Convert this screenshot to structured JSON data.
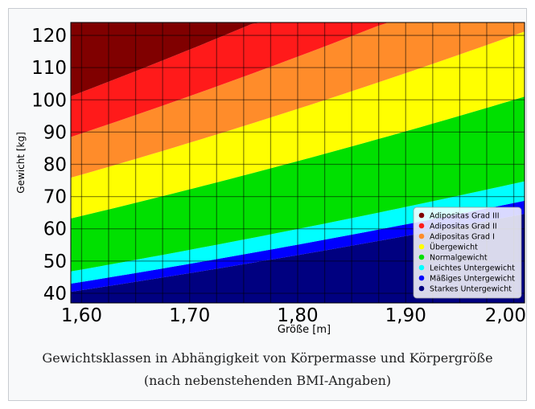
{
  "caption": {
    "line1": "Gewichtsklassen in Abhängigkeit von Körpermasse und Körpergröße",
    "line2": "(nach nebenstehenden BMI-Angaben)"
  },
  "chart_data": {
    "type": "area",
    "title": "",
    "xlabel": "Größe [m]",
    "ylabel": "Gewicht [kg]",
    "xlim": [
      1.59,
      2.01
    ],
    "ylim": [
      37,
      124
    ],
    "x_ticks": [
      "1,60",
      "1,70",
      "1,80",
      "1,90",
      "2,00"
    ],
    "x_tick_values": [
      1.6,
      1.7,
      1.8,
      1.9,
      2.0
    ],
    "y_ticks": [
      "40",
      "50",
      "60",
      "70",
      "80",
      "90",
      "100",
      "110",
      "120"
    ],
    "y_tick_values": [
      40,
      50,
      60,
      70,
      80,
      90,
      100,
      110,
      120
    ],
    "grid": true,
    "legend_position": "bottom-right",
    "series": [
      {
        "name": "Starkes Untergewicht",
        "bmi_min": 0,
        "bmi_max": 16,
        "color": "#000080"
      },
      {
        "name": "Mäßiges Untergewicht",
        "bmi_min": 16,
        "bmi_max": 17,
        "color": "#0000ff"
      },
      {
        "name": "Leichtes Untergewicht",
        "bmi_min": 17,
        "bmi_max": 18.5,
        "color": "#00ffff"
      },
      {
        "name": "Normalgewicht",
        "bmi_min": 18.5,
        "bmi_max": 25,
        "color": "#00e000"
      },
      {
        "name": "Übergewicht",
        "bmi_min": 25,
        "bmi_max": 30,
        "color": "#ffff00"
      },
      {
        "name": "Adipositas Grad I",
        "bmi_min": 30,
        "bmi_max": 35,
        "color": "#ff8c2a"
      },
      {
        "name": "Adipositas Grad II",
        "bmi_min": 35,
        "bmi_max": 40,
        "color": "#ff1a1a"
      },
      {
        "name": "Adipositas Grad III",
        "bmi_min": 40,
        "bmi_max": 999,
        "color": "#800000"
      }
    ],
    "legend_order": [
      "Adipositas Grad III",
      "Adipositas Grad II",
      "Adipositas Grad I",
      "Übergewicht",
      "Normalgewicht",
      "Leichtes Untergewicht",
      "Mäßiges Untergewicht",
      "Starkes Untergewicht"
    ]
  }
}
